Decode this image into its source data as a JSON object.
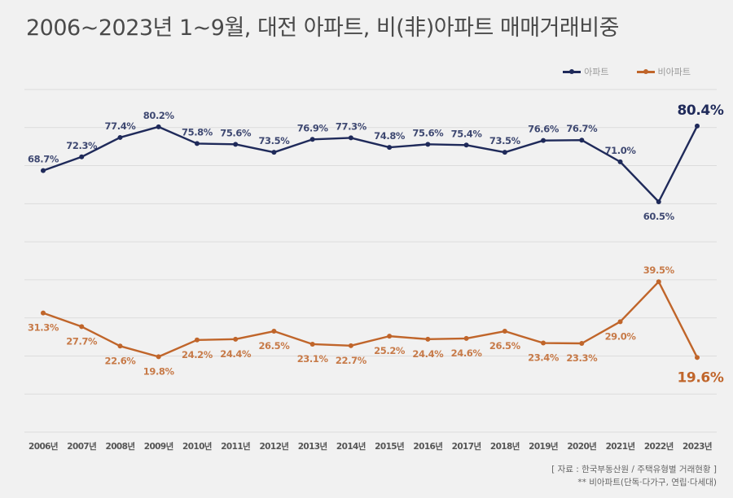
{
  "title": "2006~2023년 1~9월, 대전 아파트, 비(非)아파트 매매거래비중",
  "legend": [
    {
      "label": "아파트",
      "color": "#1f2a5a"
    },
    {
      "label": "비아파트",
      "color": "#c0652a"
    }
  ],
  "footer": {
    "source": "[ 자료 : 한국부동산원 / 주택유형별 거래현황 ]",
    "note": "** 비아파트(단독·다가구, 연립·다세대)"
  },
  "chart_data": {
    "type": "line",
    "title": "2006~2023년 1~9월, 대전 아파트, 비(非)아파트 매매거래비중",
    "xlabel": "",
    "ylabel": "",
    "ylim": [
      0,
      90
    ],
    "grid": true,
    "legend_position": "top-right",
    "categories": [
      "2006년",
      "2007년",
      "2008년",
      "2009년",
      "2010년",
      "2011년",
      "2012년",
      "2013년",
      "2014년",
      "2015년",
      "2016년",
      "2017년",
      "2018년",
      "2019년",
      "2020년",
      "2021년",
      "2022년",
      "2023년"
    ],
    "series": [
      {
        "name": "아파트",
        "color": "#1f2a5a",
        "values": [
          68.7,
          72.3,
          77.4,
          80.2,
          75.8,
          75.6,
          73.5,
          76.9,
          77.3,
          74.8,
          75.6,
          75.4,
          73.5,
          76.6,
          76.7,
          71.0,
          60.5,
          80.4
        ],
        "labels": [
          "68.7%",
          "72.3%",
          "77.4%",
          "80.2%",
          "75.8%",
          "75.6%",
          "73.5%",
          "76.9%",
          "77.3%",
          "74.8%",
          "75.6%",
          "75.4%",
          "73.5%",
          "76.6%",
          "76.7%",
          "71.0%",
          "60.5%",
          "80.4%"
        ],
        "label_side": [
          "above",
          "above",
          "above",
          "above",
          "above",
          "above",
          "above",
          "above",
          "above",
          "above",
          "above",
          "above",
          "above",
          "above",
          "above",
          "above",
          "below",
          "above"
        ],
        "highlight_last": true
      },
      {
        "name": "비아파트",
        "color": "#c0652a",
        "values": [
          31.3,
          27.7,
          22.6,
          19.8,
          24.2,
          24.4,
          26.5,
          23.1,
          22.7,
          25.2,
          24.4,
          24.6,
          26.5,
          23.4,
          23.3,
          29.0,
          39.5,
          19.6
        ],
        "labels": [
          "31.3%",
          "27.7%",
          "22.6%",
          "19.8%",
          "24.2%",
          "24.4%",
          "26.5%",
          "23.1%",
          "22.7%",
          "25.2%",
          "24.4%",
          "24.6%",
          "26.5%",
          "23.4%",
          "23.3%",
          "29.0%",
          "39.5%",
          "19.6%"
        ],
        "label_side": [
          "below",
          "below",
          "below",
          "below",
          "below",
          "below",
          "below",
          "below",
          "below",
          "below",
          "below",
          "below",
          "below",
          "below",
          "below",
          "below",
          "above",
          "below"
        ],
        "highlight_last": true
      }
    ]
  }
}
